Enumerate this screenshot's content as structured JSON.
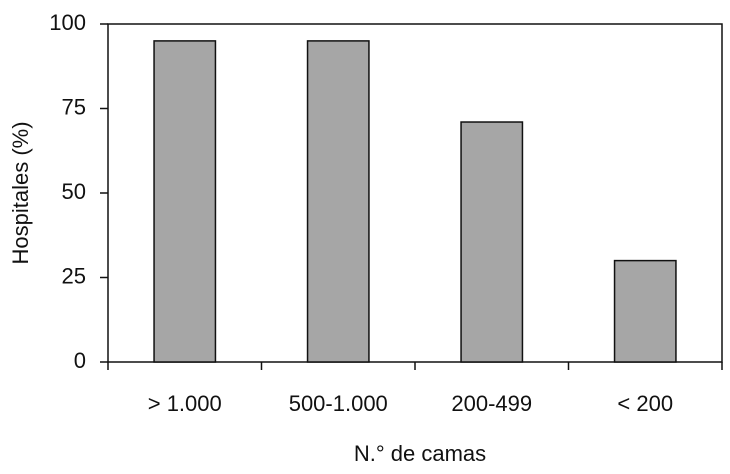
{
  "chart_data": {
    "type": "bar",
    "categories": [
      "> 1.000",
      "500-1.000",
      "200-499",
      "< 200"
    ],
    "values": [
      95,
      95,
      71,
      30
    ],
    "color": "#a6a6a6",
    "ylim": [
      0,
      100
    ],
    "yticks": [
      0,
      25,
      50,
      75,
      100
    ],
    "grid": false,
    "xlabel": "N.° de camas",
    "ylabel": "Hospitales (%)"
  }
}
